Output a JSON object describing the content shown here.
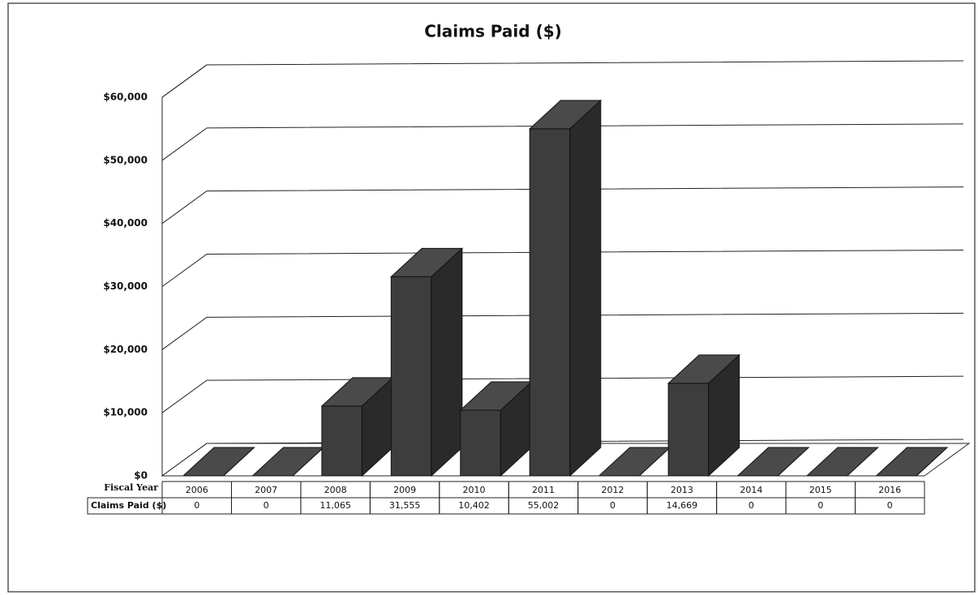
{
  "chart_data": {
    "type": "bar3d",
    "title": "Claims Paid ($)",
    "table_row_labels": [
      "Fiscal Year",
      "Claims Paid ($)"
    ],
    "categories": [
      "2006",
      "2007",
      "2008",
      "2009",
      "2010",
      "2011",
      "2012",
      "2013",
      "2014",
      "2015",
      "2016"
    ],
    "values": [
      0,
      0,
      11065,
      31555,
      10402,
      55002,
      0,
      14669,
      0,
      0,
      0
    ],
    "value_labels": [
      "0",
      "0",
      "11,065",
      "31,555",
      "10,402",
      "55,002",
      "0",
      "14,669",
      "0",
      "0",
      "0"
    ],
    "color": "#3d3d3d",
    "ylim": [
      0,
      60000
    ],
    "yticks": [
      {
        "value": 0,
        "label": "$0"
      },
      {
        "value": 10000,
        "label": "$10,000"
      },
      {
        "value": 20000,
        "label": "$20,000"
      },
      {
        "value": 30000,
        "label": "$30,000"
      },
      {
        "value": 40000,
        "label": "$40,000"
      },
      {
        "value": 50000,
        "label": "$50,000"
      },
      {
        "value": 60000,
        "label": "$60,000"
      }
    ],
    "grid": true
  }
}
